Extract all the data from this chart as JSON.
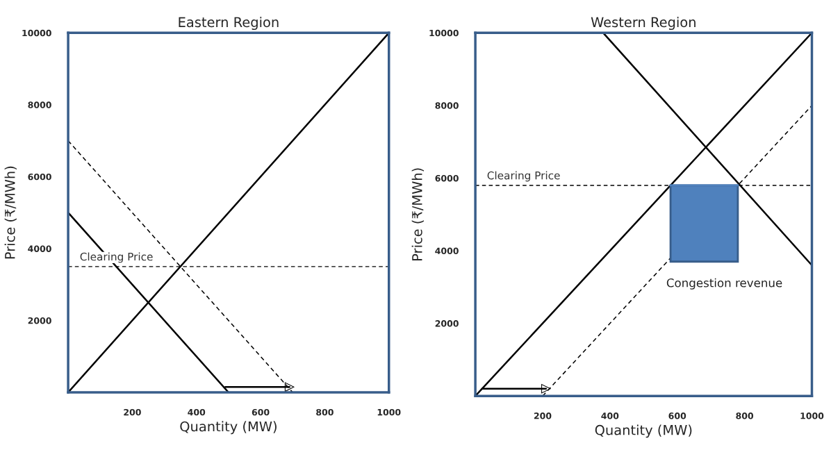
{
  "chart_data": [
    {
      "type": "line",
      "title": "Eastern Region",
      "xlabel": "Quantity (MW)",
      "ylabel": "Price (₹/MWh)",
      "xlim": [
        0,
        1000
      ],
      "ylim": [
        0,
        10000
      ],
      "xticks": [
        200,
        400,
        600,
        800,
        1000
      ],
      "yticks": [
        2000,
        4000,
        6000,
        8000,
        10000
      ],
      "grid": false,
      "legend": false,
      "series": [
        {
          "color": "#000000",
          "x": [
            0,
            1000
          ],
          "values": [
            0,
            10000
          ],
          "line_style": "solid"
        },
        {
          "color": "#000000",
          "x": [
            0,
            500
          ],
          "values": [
            5000,
            0
          ],
          "line_style": "solid"
        },
        {
          "color": "#000000",
          "x": [
            0,
            700
          ],
          "values": [
            7000,
            0
          ],
          "line_style": "dashed"
        },
        {
          "color": "#000000",
          "x": [
            490,
            690
          ],
          "values": [
            150,
            150
          ],
          "line_style": "solid",
          "marker": "triangle"
        }
      ],
      "ref_lines": [
        {
          "axis": "y",
          "value": 3500,
          "label": "Clearing Price",
          "color": "#000000",
          "line_style": "dashed"
        }
      ]
    },
    {
      "type": "line",
      "title": "Western Region",
      "xlabel": "Quantity (MW)",
      "ylabel": "Price (₹/MWh)",
      "xlim": [
        0,
        1000
      ],
      "ylim": [
        0,
        10000
      ],
      "xticks": [
        200,
        400,
        600,
        800,
        1000
      ],
      "yticks": [
        2000,
        4000,
        6000,
        8000,
        10000
      ],
      "grid": false,
      "legend": false,
      "series": [
        {
          "color": "#4f81bd",
          "x": [
            580,
            780
          ],
          "values": [
            5800,
            5800
          ],
          "lower": [
            3700,
            3700
          ],
          "upper": [
            5800,
            5800
          ],
          "line_style": "solid"
        },
        {
          "color": "#000000",
          "x": [
            0,
            1000
          ],
          "values": [
            0,
            10000
          ],
          "line_style": "solid"
        },
        {
          "color": "#000000",
          "x": [
            380,
            1000
          ],
          "values": [
            10000,
            3600
          ],
          "line_style": "solid"
        },
        {
          "color": "#000000",
          "x": [
            200,
            1000
          ],
          "values": [
            0,
            8000
          ],
          "line_style": "dashed"
        },
        {
          "color": "#000000",
          "x": [
            20,
            210
          ],
          "values": [
            200,
            200
          ],
          "line_style": "solid",
          "marker": "triangle"
        }
      ],
      "ref_lines": [
        {
          "axis": "y",
          "value": 5800,
          "label": "Clearing Price",
          "color": "#000000",
          "line_style": "dashed"
        }
      ],
      "annotations": [
        "Congestion revenue"
      ]
    }
  ]
}
